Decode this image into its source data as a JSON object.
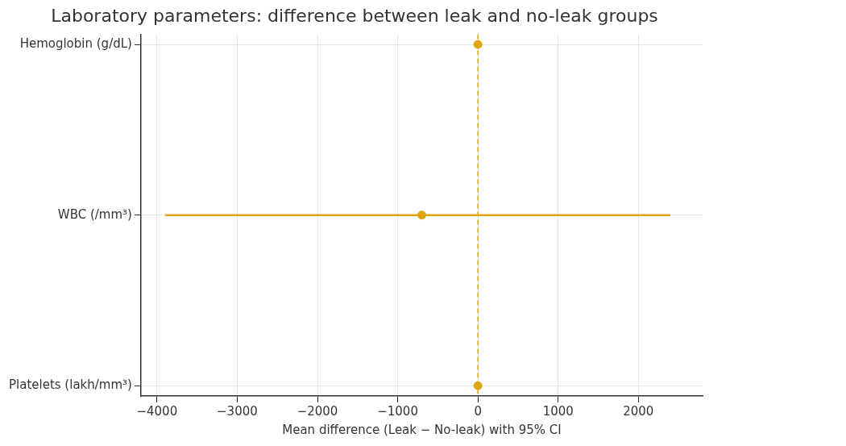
{
  "chart_data": {
    "type": "scatter",
    "title": "Laboratory parameters: difference between leak and no-leak groups",
    "xlabel": "Mean difference (Leak − No-leak) with 95% CI",
    "orientation": "horizontal",
    "categories": [
      "Hemoglobin (g/dL)",
      "WBC (/mm³)",
      "Platelets (lakh/mm³)"
    ],
    "values": [
      0,
      -700,
      0
    ],
    "errors": [
      null,
      [
        -3900,
        2400
      ],
      null
    ],
    "color": "#e0a412",
    "xlim": [
      -4200,
      2800
    ],
    "xticks": [
      -4000,
      -3000,
      -2000,
      -1000,
      0,
      1000,
      2000
    ],
    "ref_lines": [
      {
        "axis": "x",
        "value": 0,
        "color": "#e0a412",
        "line_style": "dashed"
      }
    ],
    "grid": true,
    "legend": false,
    "marker": "circle"
  }
}
